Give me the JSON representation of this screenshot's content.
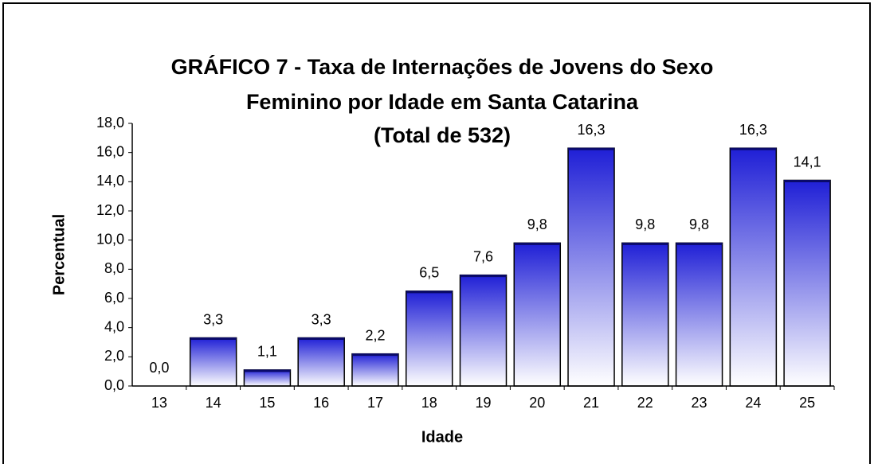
{
  "chart_data": {
    "type": "bar",
    "title": [
      "GRÁFICO 7 - Taxa de Internações de Jovens do Sexo",
      "Feminino por Idade em Santa Catarina",
      "(Total de 532)"
    ],
    "x_label": "Idade",
    "y_label": "Percentual",
    "categories": [
      "13",
      "14",
      "15",
      "16",
      "17",
      "18",
      "19",
      "20",
      "21",
      "22",
      "23",
      "24",
      "25"
    ],
    "values": [
      0.0,
      3.3,
      1.1,
      3.3,
      2.2,
      6.5,
      7.6,
      9.8,
      16.3,
      9.8,
      9.8,
      16.3,
      14.1
    ],
    "value_labels": [
      "0,0",
      "3,3",
      "1,1",
      "3,3",
      "2,2",
      "6,5",
      "7,6",
      "9,8",
      "16,3",
      "9,8",
      "9,8",
      "16,3",
      "14,1"
    ],
    "color": "#1f1fd6",
    "ylim": [
      0,
      18
    ],
    "yticks": [
      {
        "value": 0,
        "label": "0,0"
      },
      {
        "value": 2,
        "label": "2,0"
      },
      {
        "value": 4,
        "label": "4,0"
      },
      {
        "value": 6,
        "label": "6,0"
      },
      {
        "value": 8,
        "label": "8,0"
      },
      {
        "value": 10,
        "label": "10,0"
      },
      {
        "value": 12,
        "label": "12,0"
      },
      {
        "value": 14,
        "label": "14,0"
      },
      {
        "value": 16,
        "label": "16,0"
      },
      {
        "value": 18,
        "label": "18,0"
      }
    ],
    "grid": false
  }
}
